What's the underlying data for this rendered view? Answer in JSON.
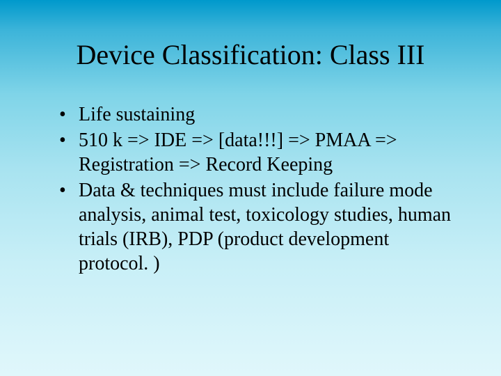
{
  "slide": {
    "title": "Device Classification: Class III",
    "bullets": [
      "Life sustaining",
      "510 k => IDE => [data!!!] => PMAA => Registration => Record Keeping",
      "Data & techniques must include failure mode analysis, animal test, toxicology studies, human trials (IRB), PDP (product development protocol. )"
    ],
    "background_gradient_top": "#0099cc",
    "background_gradient_bottom": "#e0f7fb",
    "title_fontsize": 40,
    "body_fontsize": 28,
    "font_family": "Times New Roman",
    "text_color": "#000000"
  }
}
